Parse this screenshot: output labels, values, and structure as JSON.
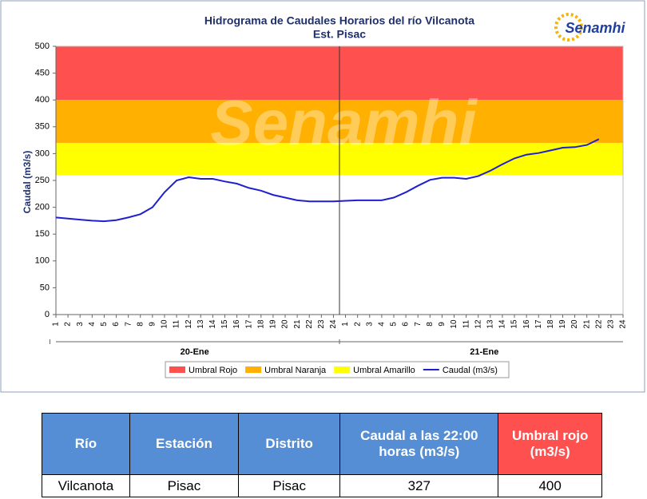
{
  "chart_data": {
    "type": "line",
    "title": "Hidrograma de Caudales Horarios del río Vilcanota",
    "subtitle": "Est. Pisac",
    "logo": "Senamhi",
    "y_label": "Caudal  (m3/s)",
    "categories": [
      "1",
      "2",
      "3",
      "4",
      "5",
      "6",
      "7",
      "8",
      "9",
      "10",
      "11",
      "12",
      "13",
      "14",
      "15",
      "16",
      "17",
      "18",
      "19",
      "20",
      "21",
      "22",
      "23",
      "24",
      "1",
      "2",
      "3",
      "4",
      "5",
      "6",
      "7",
      "8",
      "9",
      "10",
      "11",
      "12",
      "13",
      "14",
      "15",
      "16",
      "17",
      "18",
      "19",
      "20",
      "21",
      "22",
      "23",
      "24"
    ],
    "groups": [
      "20-Ene",
      "21-Ene"
    ],
    "series": [
      {
        "name": "Caudal (m3/s)",
        "color": "#1f1fd0",
        "values": [
          181,
          179,
          177,
          175,
          174,
          176,
          181,
          187,
          200,
          228,
          250,
          256,
          253,
          253,
          248,
          244,
          236,
          231,
          223,
          218,
          213,
          211,
          211,
          211,
          212,
          213,
          213,
          213,
          218,
          228,
          240,
          251,
          255,
          255,
          253,
          258,
          268,
          280,
          291,
          298,
          301,
          306,
          311,
          312,
          316,
          327,
          null,
          null
        ]
      }
    ],
    "thresholds": [
      {
        "name": "Umbral Rojo",
        "color": "#ff5050",
        "from": 400,
        "to": 500
      },
      {
        "name": "Umbral Naranja",
        "color": "#ffb000",
        "from": 320,
        "to": 400
      },
      {
        "name": "Umbral Amarillo",
        "color": "#ffff00",
        "from": 260,
        "to": 320
      }
    ],
    "ylim": [
      0,
      500
    ],
    "yticks": [
      0,
      50,
      100,
      150,
      200,
      250,
      300,
      350,
      400,
      450,
      500
    ]
  },
  "table": {
    "header": [
      "Río",
      "Estación",
      "Distrito",
      "Caudal a las 22:00 horas (m3/s)",
      "Umbral rojo (m3/s)"
    ],
    "rows": [
      [
        "Vilcanota",
        "Pisac",
        "Pisac",
        327,
        400
      ]
    ]
  }
}
